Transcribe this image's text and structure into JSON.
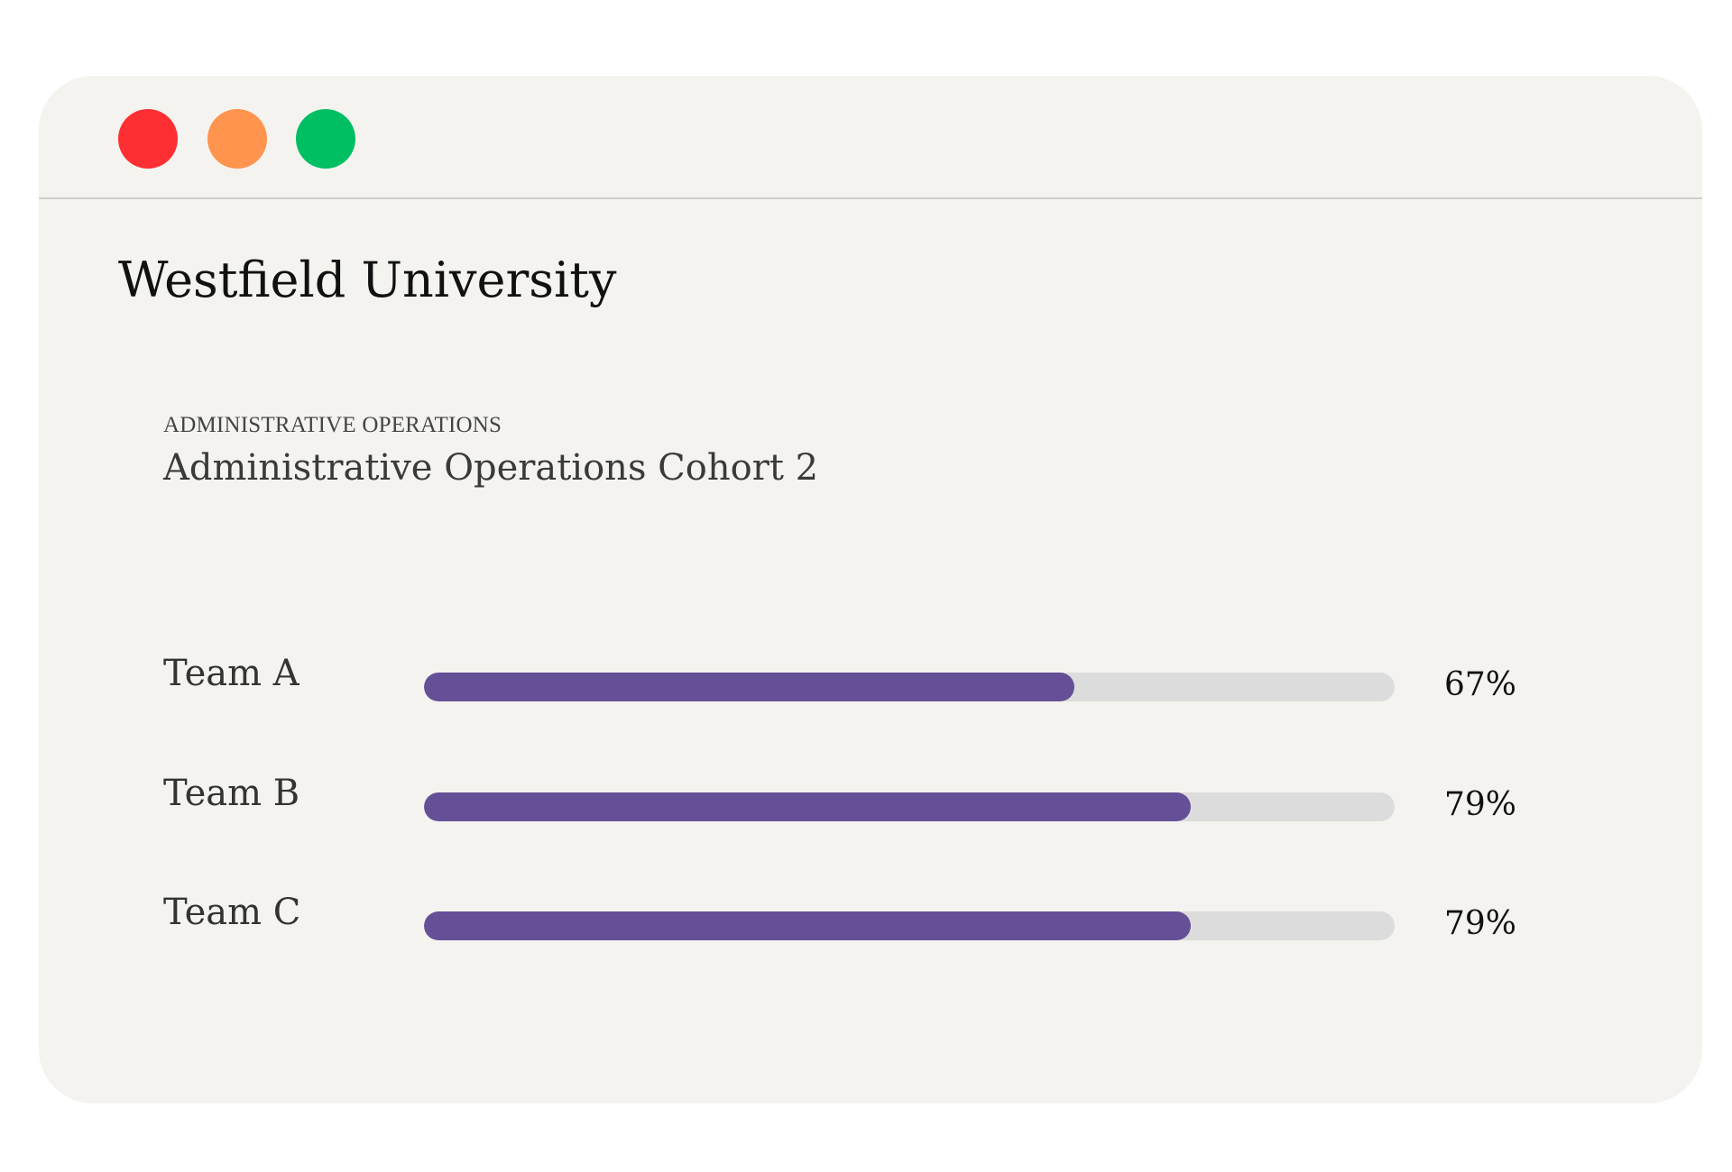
{
  "window": {
    "controls": [
      {
        "name": "close",
        "color": "#fe2f32"
      },
      {
        "name": "minimize",
        "color": "#ff944e"
      },
      {
        "name": "maximize",
        "color": "#00bf63"
      }
    ]
  },
  "app": {
    "title": "Westfield University"
  },
  "section": {
    "eyebrow": "ADMINISTRATIVE OPERATIONS",
    "title": "Administrative Operations Cohort 2"
  },
  "teams": [
    {
      "label": "Team A",
      "percent_text": "67%",
      "progress": 0.67
    },
    {
      "label": "Team B",
      "percent_text": "79%",
      "progress": 0.79
    },
    {
      "label": "Team C",
      "percent_text": "79%",
      "progress": 0.79
    }
  ],
  "colors": {
    "bar_fill": "#655098",
    "bar_track": "#dcdcdc",
    "window_bg": "#f4f3ef"
  }
}
